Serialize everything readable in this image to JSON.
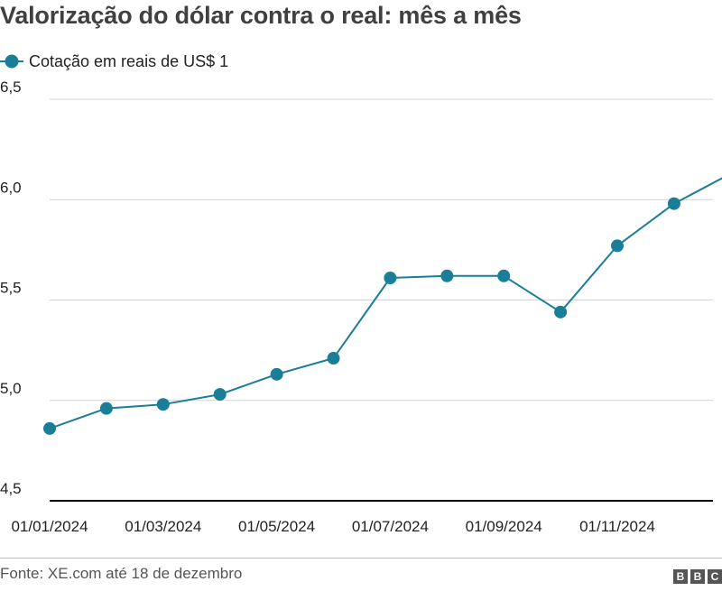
{
  "title": "Valorização do dólar contra o real: mês a mês",
  "legend": {
    "label": "Cotação em reais de US$ 1"
  },
  "source": "Fonte: XE.com até 18 de dezembro",
  "logo": {
    "letters": [
      "B",
      "B",
      "C"
    ]
  },
  "colors": {
    "series": "#1a7e98",
    "axis": "#000000",
    "grid": "#d4d4d4",
    "text": "#222222"
  },
  "chart_data": {
    "type": "line",
    "title": "Valorização do dólar contra o real: mês a mês",
    "xlabel": "",
    "ylabel": "",
    "ylim": [
      4.5,
      6.5
    ],
    "yticks": [
      4.5,
      5.0,
      5.5,
      6.0,
      6.5
    ],
    "ytick_labels": [
      "4,5",
      "5,0",
      "5,5",
      "6,0",
      "6,5"
    ],
    "xtick_labels": [
      "01/01/2024",
      "01/03/2024",
      "01/05/2024",
      "01/07/2024",
      "01/09/2024",
      "01/11/2024"
    ],
    "xtick_indices": [
      0,
      2,
      4,
      6,
      8,
      10
    ],
    "grid": "horizontal",
    "legend_position": "top-left",
    "series": [
      {
        "name": "Cotação em reais de US$ 1",
        "x": [
          "01/01/2024",
          "01/02/2024",
          "01/03/2024",
          "01/04/2024",
          "01/05/2024",
          "01/06/2024",
          "01/07/2024",
          "01/08/2024",
          "01/09/2024",
          "01/10/2024",
          "01/11/2024",
          "01/12/2024",
          "18/12/2024"
        ],
        "values": [
          4.86,
          4.96,
          4.98,
          5.03,
          5.13,
          5.21,
          5.61,
          5.62,
          5.62,
          5.44,
          5.77,
          5.98,
          6.13
        ]
      }
    ]
  }
}
